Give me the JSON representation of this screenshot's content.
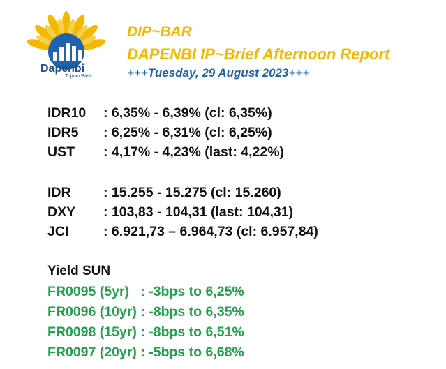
{
  "header": {
    "logo_name": "Dapenbi",
    "logo_tagline": "Tujuan Pasti",
    "title": "DIP~BAR",
    "subtitle": "DAPENBI IP~Brief Afternoon Report",
    "date": "+++Tuesday, 29 August 2023+++"
  },
  "colors": {
    "title": "#f5b800",
    "date": "#1e62b0",
    "logo_blue": "#1e4f8c",
    "sun_green": "#1fa34a"
  },
  "bonds": [
    {
      "label": "IDR10",
      "value": ": 6,35% - 6,39% (cl: 6,35%)"
    },
    {
      "label": "IDR5",
      "value": ": 6,25% - 6,31% (cl: 6,25%)"
    },
    {
      "label": "UST",
      "value": ": 4,17% - 4,23% (last: 4,22%)"
    }
  ],
  "markets": [
    {
      "label": "IDR",
      "value": ": 15.255 - 15.275 (cl: 15.260)"
    },
    {
      "label": "DXY",
      "value": ": 103,83 - 104,31 (last: 104,31)"
    },
    {
      "label": "JCI",
      "value": ": 6.921,73 – 6.964,73 (cl: 6.957,84)"
    }
  ],
  "yield_sun": {
    "title": "Yield SUN",
    "items": [
      "FR0095 (5yr)   : -3bps to 6,25%",
      "FR0096 (10yr) : -8bps to 6,35%",
      "FR0098 (15yr) : -8bps to 6,51%",
      "FR0097 (20yr) : -5bps to 6,68%"
    ]
  }
}
